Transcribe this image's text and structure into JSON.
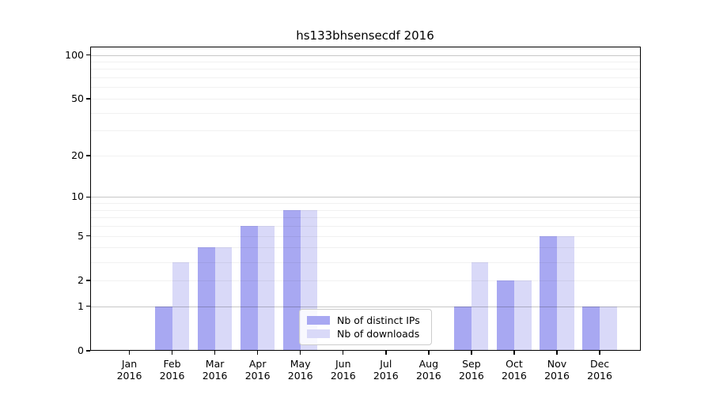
{
  "chart_data": {
    "type": "bar",
    "title": "hs133bhsensecdf 2016",
    "categories": [
      "Jan",
      "Feb",
      "Mar",
      "Apr",
      "May",
      "Jun",
      "Jul",
      "Aug",
      "Sep",
      "Oct",
      "Nov",
      "Dec"
    ],
    "x_tick_year": "2016",
    "series": [
      {
        "name": "Nb of distinct IPs",
        "color": "#a8a8f2",
        "values": [
          0,
          1,
          4,
          6,
          8,
          0,
          0,
          0,
          1,
          2,
          5,
          1
        ]
      },
      {
        "name": "Nb of downloads",
        "color": "#d9d9f8",
        "values": [
          0,
          3,
          4,
          6,
          8,
          0,
          0,
          0,
          3,
          2,
          5,
          1
        ]
      }
    ],
    "y_axis": {
      "scale": "log(1+x)",
      "tick_labels": [
        0,
        1,
        2,
        5,
        10,
        20,
        50,
        100
      ],
      "decade_gridlines": [
        1,
        10,
        100
      ],
      "minor_gridlines": [
        2,
        3,
        4,
        5,
        6,
        7,
        8,
        9,
        20,
        30,
        40,
        50,
        60,
        70,
        80,
        90
      ],
      "ylim": [
        0,
        114
      ]
    },
    "legend": {
      "location": "lower center",
      "entries": [
        "Nb of distinct IPs",
        "Nb of downloads"
      ]
    },
    "grid": "horizontal only",
    "background_color": "#ffffff"
  }
}
